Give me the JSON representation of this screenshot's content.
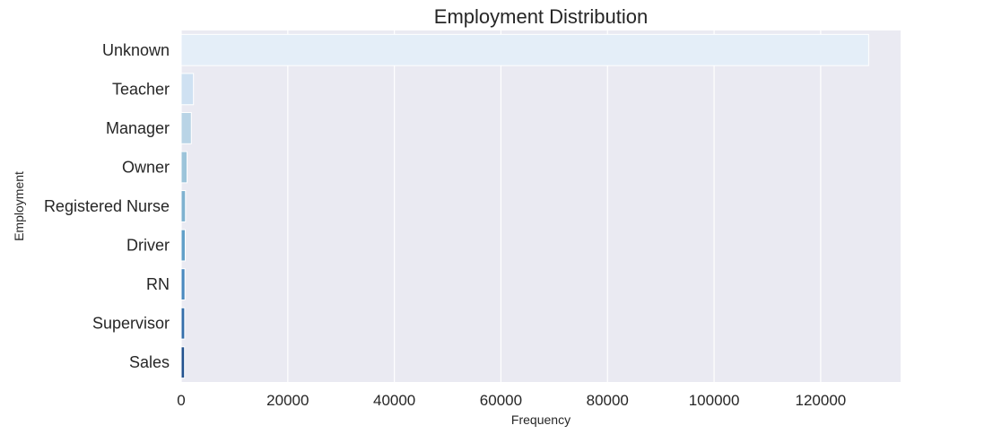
{
  "chart_data": {
    "type": "bar",
    "orientation": "horizontal",
    "title": "Employment Distribution",
    "xlabel": "Frequency",
    "ylabel": "Employment",
    "categories": [
      "Unknown",
      "Teacher",
      "Manager",
      "Owner",
      "Registered Nurse",
      "Driver",
      "RN",
      "Supervisor",
      "Sales"
    ],
    "values": [
      129000,
      2300,
      1900,
      1100,
      800,
      750,
      700,
      650,
      620
    ],
    "xlim": [
      0,
      135000
    ],
    "xticks": [
      0,
      20000,
      40000,
      60000,
      80000,
      100000,
      120000
    ],
    "xtick_labels": [
      "0",
      "20000",
      "40000",
      "60000",
      "80000",
      "100000",
      "120000"
    ],
    "grid": true,
    "colors": {
      "plot_background": "#eaeaf2",
      "grid": "#ffffff",
      "bars": [
        "#e4eef8",
        "#cfe1f2",
        "#b9d4e6",
        "#9cc4da",
        "#7fb2d0",
        "#619fc8",
        "#4a89bf",
        "#356fab",
        "#23528f"
      ]
    }
  }
}
